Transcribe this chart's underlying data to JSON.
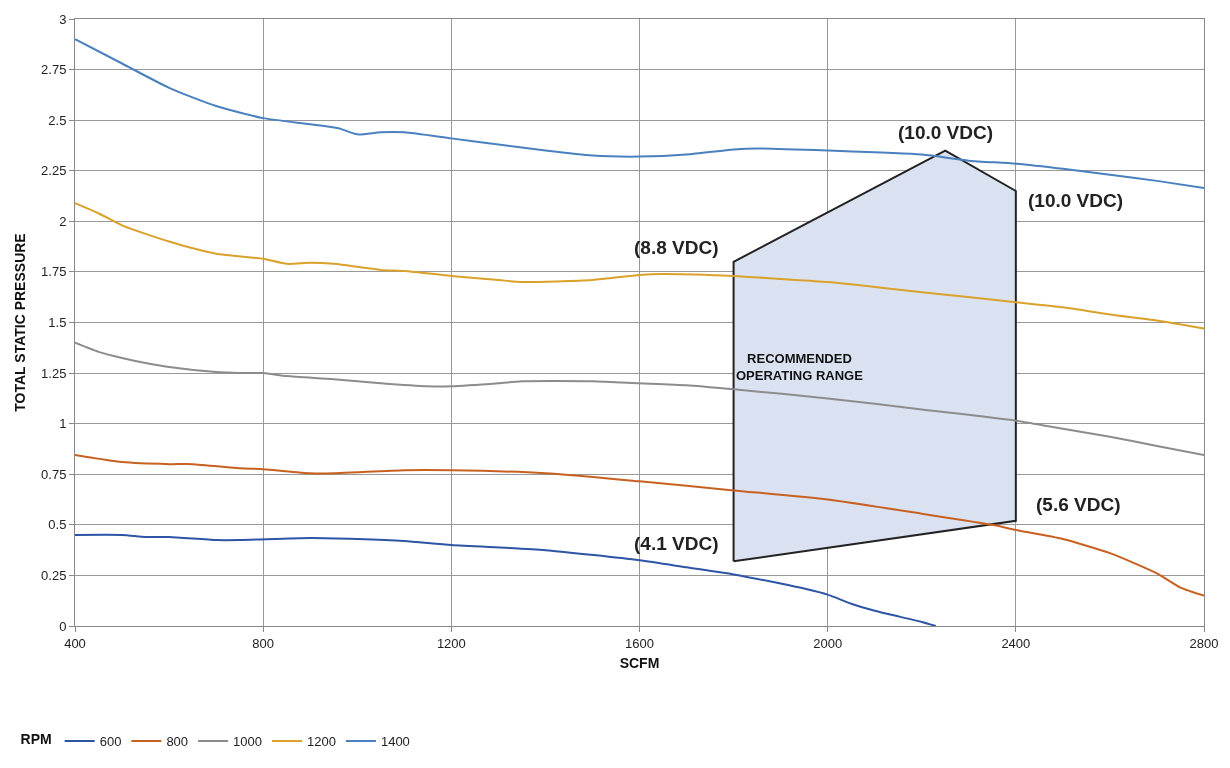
{
  "chart_data": {
    "type": "line",
    "xlabel": "SCFM",
    "ylabel": "TOTAL STATIC PRESSURE",
    "legend_title": "RPM",
    "legend": "bottom",
    "grid": true,
    "marker": "none",
    "line_style": "solid",
    "xlim": [
      400,
      2800
    ],
    "xticks": [
      400,
      800,
      1200,
      1600,
      2000,
      2400,
      2800
    ],
    "ylim": [
      0,
      3
    ],
    "yticks": [
      0,
      0.25,
      0.5,
      0.75,
      1,
      1.25,
      1.5,
      1.75,
      2,
      2.25,
      2.5,
      2.75,
      3
    ],
    "series": [
      {
        "type": "area",
        "color": "#dae2f1",
        "x": [
          1800,
          1800,
          2250,
          2400,
          2400,
          1800
        ],
        "values": [
          0.32,
          1.8,
          2.35,
          2.15,
          0.52,
          0.32
        ]
      },
      {
        "name": "600",
        "color": "#2e54a6",
        "x": [
          400,
          500,
          550,
          600,
          700,
          750,
          900,
          1000,
          1100,
          1200,
          1400,
          1600,
          1700,
          1800,
          1900,
          1950,
          2000,
          2050,
          2100,
          2200,
          2230
        ],
        "values": [
          0.45,
          0.45,
          0.44,
          0.44,
          0.425,
          0.425,
          0.435,
          0.43,
          0.42,
          0.4,
          0.375,
          0.325,
          0.29,
          0.255,
          0.21,
          0.185,
          0.155,
          0.11,
          0.075,
          0.02,
          0
        ]
      },
      {
        "name": "800",
        "color": "#c8611f",
        "x": [
          400,
          500,
          600,
          650,
          750,
          800,
          900,
          950,
          1000,
          1100,
          1200,
          1400,
          1600,
          1800,
          2000,
          2200,
          2350,
          2400,
          2500,
          2600,
          2700,
          2750,
          2800
        ],
        "values": [
          0.845,
          0.81,
          0.8,
          0.8,
          0.78,
          0.775,
          0.755,
          0.755,
          0.76,
          0.77,
          0.77,
          0.755,
          0.715,
          0.67,
          0.625,
          0.555,
          0.5,
          0.475,
          0.43,
          0.36,
          0.26,
          0.19,
          0.15
        ]
      },
      {
        "name": "1000",
        "color": "#8c8c8c",
        "x": [
          400,
          450,
          500,
          550,
          600,
          700,
          750,
          800,
          850,
          950,
          1050,
          1150,
          1200,
          1300,
          1350,
          1500,
          1600,
          1700,
          1800,
          2000,
          2200,
          2400,
          2500,
          2600,
          2700,
          2800
        ],
        "values": [
          1.4,
          1.355,
          1.325,
          1.3,
          1.28,
          1.255,
          1.25,
          1.25,
          1.235,
          1.22,
          1.2,
          1.185,
          1.185,
          1.2,
          1.21,
          1.21,
          1.2,
          1.19,
          1.17,
          1.125,
          1.07,
          1.015,
          0.975,
          0.935,
          0.89,
          0.845
        ]
      },
      {
        "name": "1200",
        "color": "#daa12b",
        "x": [
          400,
          450,
          500,
          600,
          700,
          800,
          850,
          900,
          950,
          1050,
          1100,
          1200,
          1300,
          1350,
          1500,
          1600,
          1650,
          1800,
          1900,
          2000,
          2200,
          2400,
          2500,
          2600,
          2700,
          2800
        ],
        "values": [
          2.09,
          2.04,
          1.98,
          1.9,
          1.84,
          1.815,
          1.79,
          1.795,
          1.79,
          1.76,
          1.755,
          1.73,
          1.71,
          1.7,
          1.71,
          1.735,
          1.74,
          1.73,
          1.715,
          1.7,
          1.65,
          1.6,
          1.575,
          1.54,
          1.51,
          1.47
        ]
      },
      {
        "name": "1400",
        "color": "#4a80bf",
        "x": [
          400,
          500,
          600,
          700,
          800,
          900,
          960,
          1000,
          1050,
          1100,
          1200,
          1300,
          1400,
          1500,
          1600,
          1700,
          1800,
          1850,
          2000,
          2200,
          2300,
          2400,
          2500,
          2600,
          2700,
          2800
        ],
        "values": [
          2.9,
          2.78,
          2.66,
          2.57,
          2.51,
          2.48,
          2.46,
          2.43,
          2.44,
          2.44,
          2.41,
          2.38,
          2.35,
          2.325,
          2.32,
          2.33,
          2.355,
          2.36,
          2.35,
          2.33,
          2.3,
          2.285,
          2.26,
          2.23,
          2.2,
          2.165
        ]
      }
    ],
    "annotations": [
      {
        "text": "(4.1 VDC)",
        "x": 1800,
        "y": 0.32
      },
      {
        "text": "(8.8 VDC)",
        "x": 1800,
        "y": 1.8
      },
      {
        "text": "(10.0 VDC)",
        "x": 2250,
        "y": 2.35
      },
      {
        "text": "(10.0 VDC)",
        "x": 2400,
        "y": 2.15
      },
      {
        "text": "(5.6 VDC)",
        "x": 2400,
        "y": 0.52
      },
      "RECOMMENDED\nOPERATING RANGE"
    ]
  }
}
